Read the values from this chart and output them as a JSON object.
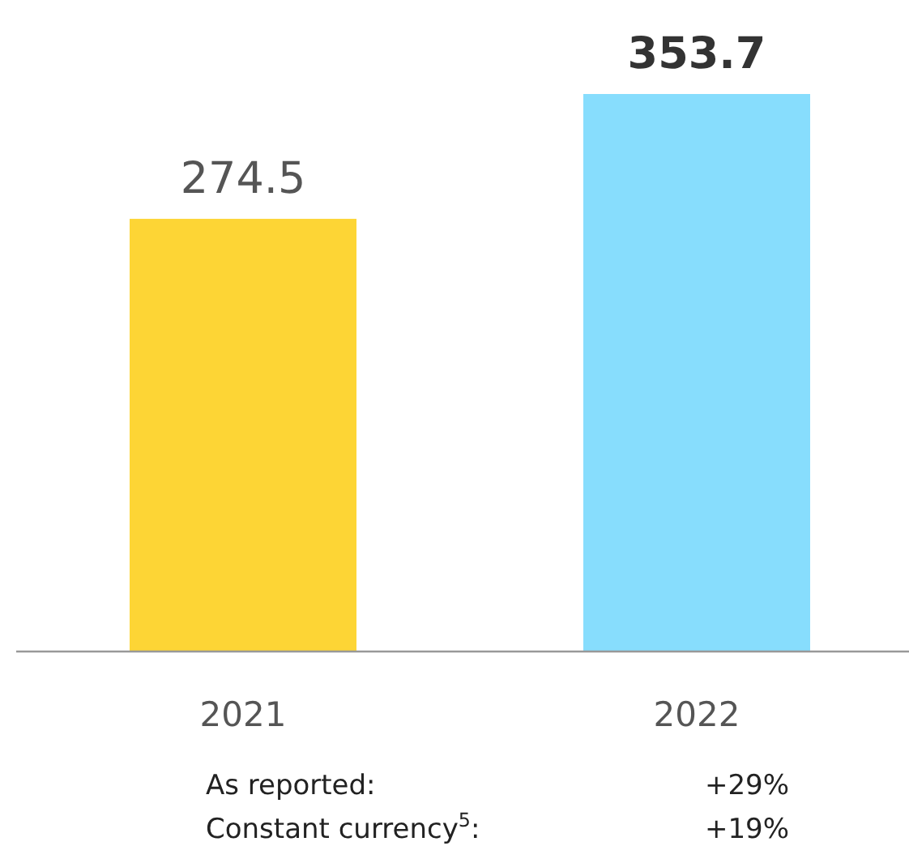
{
  "chart_data": {
    "type": "bar",
    "categories": [
      "2021",
      "2022"
    ],
    "values": [
      274.5,
      353.7
    ],
    "colors": [
      "#fdd535",
      "#87ddfd"
    ],
    "tick_labels": "x",
    "data_labels": true,
    "annotations": [
      "As reported:",
      "+29%",
      "Constant currency$^{5}$:",
      "+19%"
    ]
  }
}
